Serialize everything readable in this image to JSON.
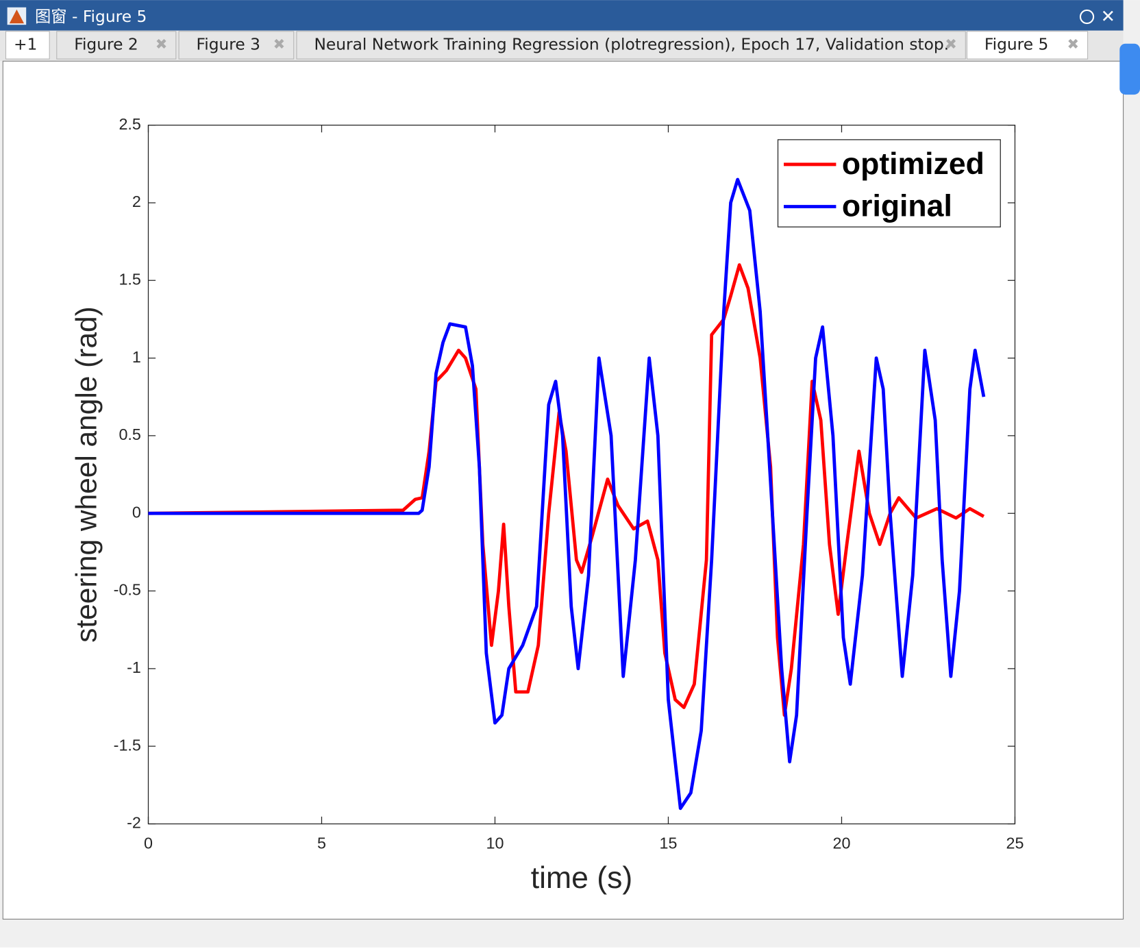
{
  "window": {
    "title": "图窗 - Figure 5",
    "tabs": [
      "+1",
      "Figure 2",
      "Figure 3",
      "Neural Network Training Regression (plotregression), Epoch 17, Validation stop.",
      "Figure 5"
    ]
  },
  "chart_data": {
    "type": "line",
    "xlabel": "time (s)",
    "ylabel": "steering wheel angle (rad)",
    "xlim": [
      0,
      25
    ],
    "xticks": [
      0,
      5,
      10,
      15,
      20,
      25
    ],
    "ylim": [
      -2,
      2.5
    ],
    "yticks": [
      -2,
      -1.5,
      -1,
      -0.5,
      0,
      0.5,
      1,
      1.5,
      2,
      2.5
    ],
    "legend": "upper right",
    "series": [
      {
        "name": "optimized",
        "color": "#ff0000",
        "x": [
          0,
          7.35,
          7.7,
          7.9,
          8.1,
          8.3,
          8.6,
          8.95,
          9.15,
          9.45,
          9.65,
          9.9,
          10.1,
          10.25,
          10.4,
          10.6,
          10.95,
          11.25,
          11.55,
          11.85,
          12.05,
          12.35,
          12.5,
          12.8,
          13.25,
          13.55,
          14.0,
          14.4,
          14.7,
          14.9,
          15.2,
          15.45,
          15.75,
          16.1,
          16.25,
          16.6,
          16.8,
          17.05,
          17.3,
          17.65,
          17.95,
          18.15,
          18.35,
          18.55,
          18.9,
          19.15,
          19.4,
          19.65,
          19.9,
          20.15,
          20.5,
          20.8,
          21.1,
          21.4,
          21.65,
          22.15,
          22.75,
          23.3,
          23.7,
          24.1
        ],
        "values": [
          0,
          0.02,
          0.09,
          0.1,
          0.4,
          0.85,
          0.92,
          1.05,
          1.0,
          0.8,
          -0.2,
          -0.85,
          -0.5,
          -0.07,
          -0.6,
          -1.15,
          -1.15,
          -0.85,
          0.0,
          0.65,
          0.4,
          -0.3,
          -0.38,
          -0.15,
          0.22,
          0.05,
          -0.1,
          -0.05,
          -0.3,
          -0.9,
          -1.2,
          -1.25,
          -1.1,
          -0.3,
          1.15,
          1.25,
          1.4,
          1.6,
          1.45,
          1.0,
          0.3,
          -0.8,
          -1.3,
          -1.0,
          -0.2,
          0.85,
          0.6,
          -0.2,
          -0.65,
          -0.2,
          0.4,
          0.0,
          -0.2,
          0.0,
          0.1,
          -0.03,
          0.03,
          -0.03,
          0.03,
          -0.02
        ]
      },
      {
        "name": "original",
        "color": "#0000ff",
        "x": [
          0,
          7.8,
          7.9,
          8.1,
          8.3,
          8.5,
          8.7,
          9.15,
          9.35,
          9.55,
          9.75,
          10.0,
          10.2,
          10.4,
          10.8,
          11.2,
          11.55,
          11.75,
          11.95,
          12.2,
          12.4,
          12.7,
          13.0,
          13.35,
          13.7,
          14.05,
          14.45,
          14.7,
          15.0,
          15.35,
          15.65,
          15.95,
          16.25,
          16.6,
          16.8,
          17.0,
          17.35,
          17.65,
          17.95,
          18.27,
          18.5,
          18.7,
          19.0,
          19.25,
          19.45,
          19.75,
          20.05,
          20.25,
          20.6,
          21.0,
          21.2,
          21.4,
          21.75,
          22.05,
          22.4,
          22.7,
          22.9,
          23.15,
          23.4,
          23.7,
          23.85,
          24.1
        ],
        "values": [
          0,
          0,
          0.02,
          0.3,
          0.9,
          1.1,
          1.22,
          1.2,
          0.95,
          0.3,
          -0.9,
          -1.35,
          -1.3,
          -1.0,
          -0.85,
          -0.6,
          0.7,
          0.85,
          0.5,
          -0.6,
          -1.0,
          -0.4,
          1.0,
          0.5,
          -1.05,
          -0.3,
          1.0,
          0.5,
          -1.2,
          -1.9,
          -1.8,
          -1.4,
          -0.3,
          1.3,
          2.0,
          2.15,
          1.95,
          1.3,
          0.2,
          -1.0,
          -1.6,
          -1.3,
          0.0,
          1.0,
          1.2,
          0.5,
          -0.8,
          -1.1,
          -0.4,
          1.0,
          0.8,
          0,
          -1.05,
          -0.4,
          1.05,
          0.6,
          -0.3,
          -1.05,
          -0.5,
          0.8,
          1.05,
          0.75
        ]
      }
    ]
  }
}
